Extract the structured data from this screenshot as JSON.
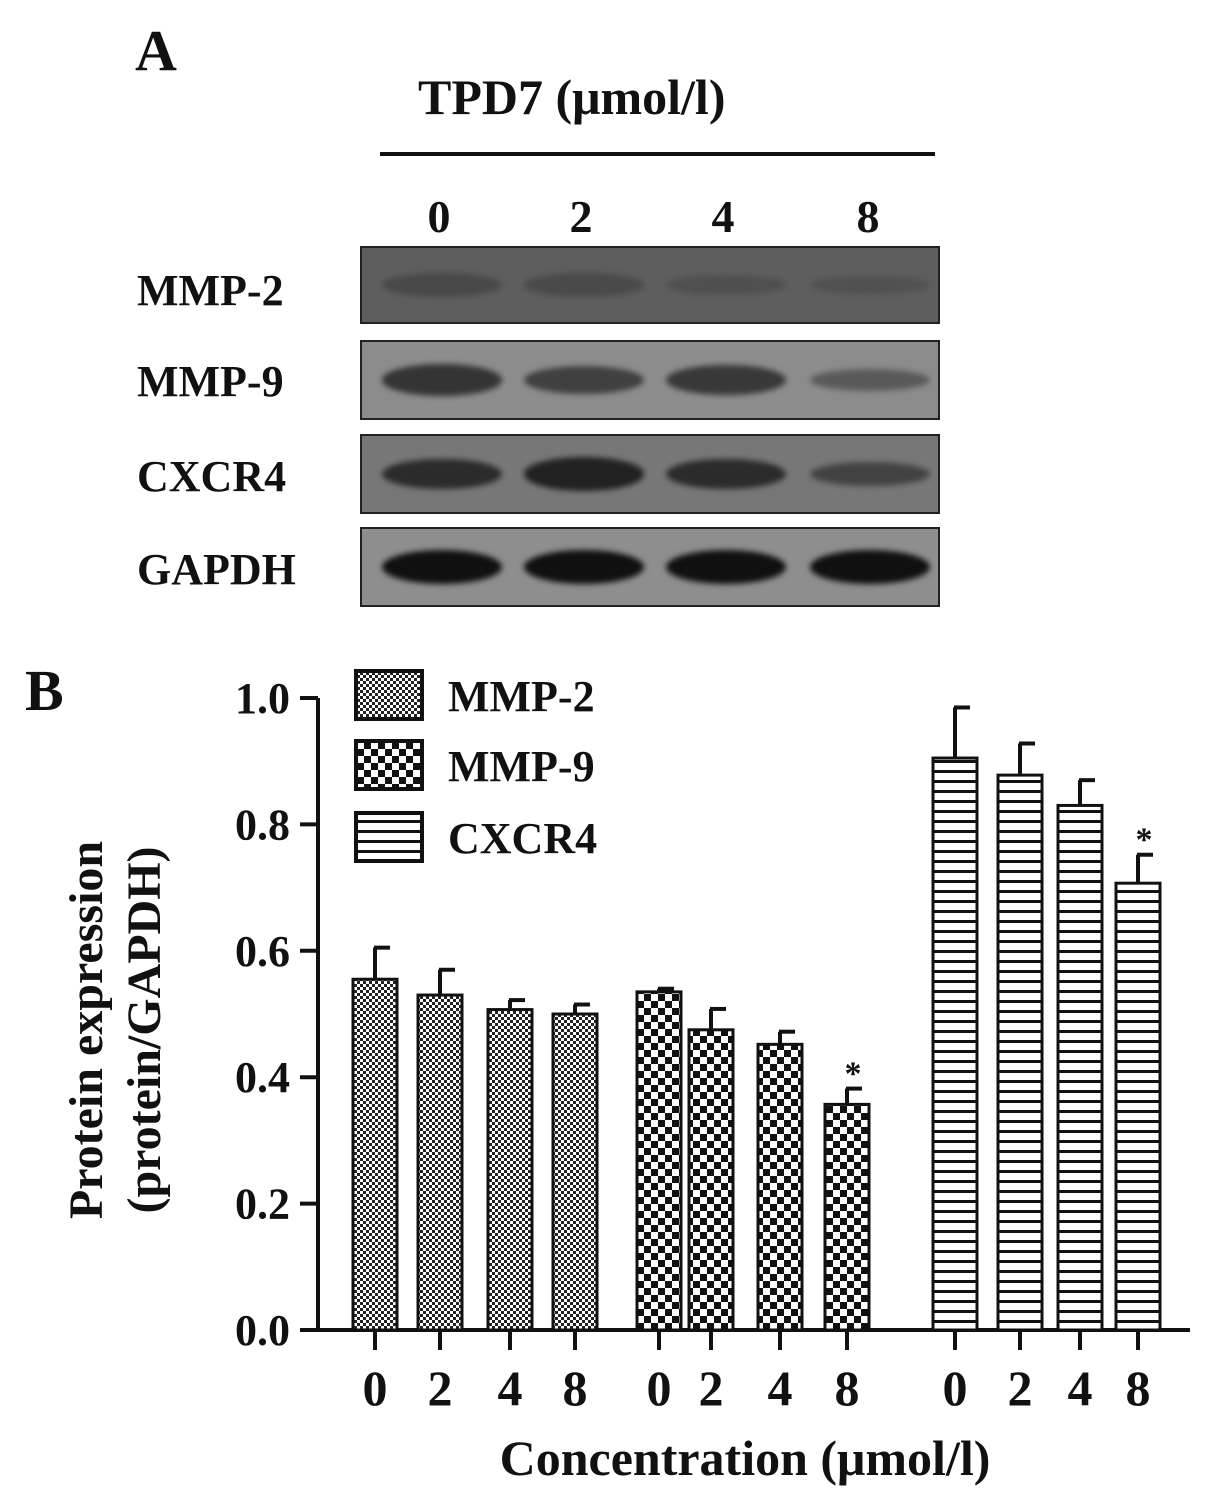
{
  "panel_a": {
    "letter": "A",
    "treatment_label": "TPD7 (μmol/l)",
    "lanes": [
      "0",
      "2",
      "4",
      "8"
    ],
    "rows": [
      {
        "label": "MMP-2",
        "bg": "#5e5e5e",
        "band_color": "#3a3a3a",
        "intensity": [
          0.45,
          0.4,
          0.2,
          0.15
        ]
      },
      {
        "label": "MMP-9",
        "bg": "#8c8c8c",
        "band_color": "#2a2a2a",
        "intensity": [
          0.85,
          0.7,
          0.8,
          0.35
        ]
      },
      {
        "label": "CXCR4",
        "bg": "#777777",
        "band_color": "#1e1e1e",
        "intensity": [
          0.8,
          0.95,
          0.8,
          0.45
        ]
      },
      {
        "label": "GAPDH",
        "bg": "#8e8e8e",
        "band_color": "#101010",
        "intensity": [
          1.0,
          1.0,
          1.0,
          1.0
        ]
      }
    ]
  },
  "panel_b": {
    "letter": "B"
  },
  "chart_data": {
    "type": "bar",
    "ylabel_lines": [
      "Protein expression",
      "(protein/GAPDH)"
    ],
    "xlabel": "Concentration (μmol/l)",
    "ylim": [
      0,
      1.0
    ],
    "yticks": [
      "0.0",
      "0.2",
      "0.4",
      "0.6",
      "0.8",
      "1.0"
    ],
    "grid": false,
    "legend_position": "top-left",
    "categories": [
      "0",
      "2",
      "4",
      "8"
    ],
    "series": [
      {
        "name": "MMP-2",
        "pattern": "checker-fine",
        "values": [
          0.555,
          0.53,
          0.507,
          0.5
        ],
        "errors": [
          0.05,
          0.04,
          0.015,
          0.015
        ],
        "significant": [
          false,
          false,
          false,
          false
        ]
      },
      {
        "name": "MMP-9",
        "pattern": "checker-coarse",
        "values": [
          0.535,
          0.475,
          0.452,
          0.357
        ],
        "errors": [
          0.005,
          0.033,
          0.02,
          0.025
        ],
        "significant": [
          false,
          false,
          false,
          true
        ]
      },
      {
        "name": "CXCR4",
        "pattern": "horizontal-stripes",
        "values": [
          0.905,
          0.878,
          0.83,
          0.707
        ],
        "errors": [
          0.08,
          0.05,
          0.04,
          0.045
        ],
        "significant": [
          false,
          false,
          false,
          true
        ]
      }
    ],
    "significance_mark": "*"
  }
}
